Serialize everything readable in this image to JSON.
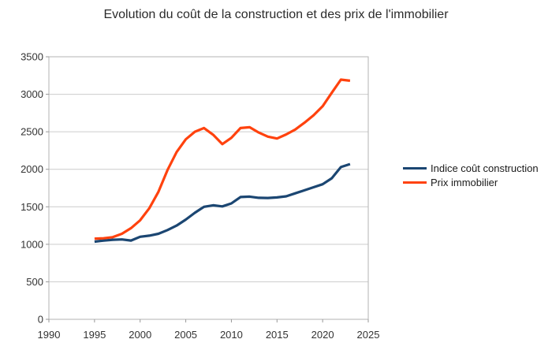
{
  "title": "Evolution du coût de la construction et des prix de l'immobilier",
  "legend": {
    "items": [
      {
        "label": "Indice coût construction",
        "color": "#1B4672"
      },
      {
        "label": "Prix immobilier",
        "color": "#FF420E"
      }
    ]
  },
  "chart_data": {
    "type": "line",
    "title": "Evolution du coût de la construction et des prix de l'immobilier",
    "xlabel": "",
    "ylabel": "",
    "xlim": [
      1990,
      2025
    ],
    "ylim": [
      0,
      3500
    ],
    "x_ticks": [
      1990,
      1995,
      2000,
      2005,
      2010,
      2015,
      2020,
      2025
    ],
    "y_ticks": [
      0,
      500,
      1000,
      1500,
      2000,
      2500,
      3000,
      3500
    ],
    "grid": "horizontal-only",
    "legend_position": "right",
    "x": [
      1995,
      1996,
      1997,
      1998,
      1999,
      2000,
      2001,
      2002,
      2003,
      2004,
      2005,
      2006,
      2007,
      2008,
      2009,
      2010,
      2011,
      2012,
      2013,
      2014,
      2015,
      2016,
      2017,
      2018,
      2019,
      2020,
      2021,
      2022,
      2023
    ],
    "series": [
      {
        "name": "Indice coût construction",
        "color": "#1B4672",
        "values": [
          1035,
          1050,
          1060,
          1065,
          1050,
          1100,
          1115,
          1140,
          1190,
          1250,
          1330,
          1420,
          1500,
          1520,
          1505,
          1545,
          1630,
          1635,
          1620,
          1618,
          1625,
          1640,
          1680,
          1720,
          1760,
          1800,
          1880,
          2030,
          2070
        ]
      },
      {
        "name": "Prix immobilier",
        "color": "#FF420E",
        "values": [
          1075,
          1080,
          1095,
          1140,
          1215,
          1320,
          1480,
          1700,
          1990,
          2230,
          2400,
          2500,
          2550,
          2460,
          2335,
          2420,
          2550,
          2560,
          2490,
          2435,
          2410,
          2465,
          2530,
          2620,
          2720,
          2840,
          3020,
          3195,
          3180
        ]
      }
    ]
  },
  "style": {
    "border_color": "#b3b3b3",
    "grid_color": "#cccccc",
    "tick_color": "#999999",
    "tick_label_color": "#333333",
    "line_width": 3.2
  }
}
